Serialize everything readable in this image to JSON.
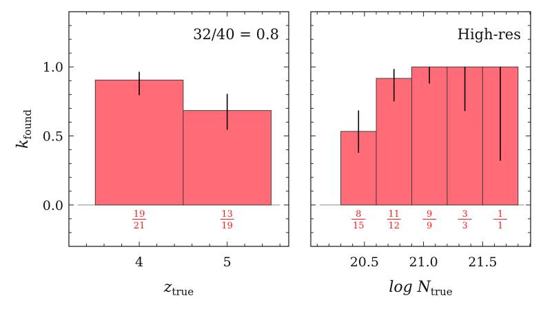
{
  "chart_data": [
    {
      "type": "bar",
      "panel": "left",
      "annotation": "32/40 = 0.8",
      "xlabel": {
        "main": "z",
        "sub": "true"
      },
      "ylabel": {
        "main": "k",
        "sub": "found"
      },
      "xlim": [
        3.2,
        5.7
      ],
      "ylim": [
        -0.3,
        1.4
      ],
      "xticks": [
        4,
        5
      ],
      "xtick_labels": [
        "4",
        "5"
      ],
      "xminor_step": 0.2,
      "yticks": [
        0.0,
        0.5,
        1.0
      ],
      "ytick_labels": [
        "0.0",
        "0.5",
        "1.0"
      ],
      "yminor_step": 0.1,
      "baseline": [
        3.3,
        5.6
      ],
      "bin_edges": [
        3.5,
        4.5,
        5.5
      ],
      "values": [
        0.905,
        0.684
      ],
      "errors_low": [
        0.795,
        0.545
      ],
      "errors_high": [
        0.965,
        0.805
      ],
      "fractions": [
        {
          "num": "19",
          "den": "21"
        },
        {
          "num": "13",
          "den": "19"
        }
      ],
      "bar_color": "#ff6b77",
      "edge_color": "#333333",
      "fraction_color": "#ff1a1a"
    },
    {
      "type": "bar",
      "panel": "right",
      "annotation": "High-res",
      "xlabel": {
        "main": "log N",
        "sub": "true"
      },
      "xlim": [
        20.046,
        21.906
      ],
      "ylim": [
        -0.3,
        1.4
      ],
      "xticks": [
        20.5,
        21.0,
        21.5
      ],
      "xtick_labels": [
        "20.5",
        "21.0",
        "21.5"
      ],
      "xminor_step": 0.1,
      "yticks": [
        0.0,
        0.5,
        1.0
      ],
      "yminor_step": 0.1,
      "baseline": [
        20.12,
        21.85
      ],
      "bin_edges": [
        20.3,
        20.6,
        20.9,
        21.2,
        21.5,
        21.8
      ],
      "values": [
        0.533,
        0.917,
        1.0,
        1.0,
        1.0
      ],
      "errors_low": [
        0.378,
        0.75,
        0.88,
        0.68,
        0.32
      ],
      "errors_high": [
        0.685,
        0.985,
        1.0,
        1.0,
        1.0
      ],
      "fractions": [
        {
          "num": "8",
          "den": "15"
        },
        {
          "num": "11",
          "den": "12"
        },
        {
          "num": "9",
          "den": "9"
        },
        {
          "num": "3",
          "den": "3"
        },
        {
          "num": "1",
          "den": "1"
        }
      ],
      "bar_color": "#ff6b77",
      "edge_color": "#333333",
      "fraction_color": "#ff1a1a"
    }
  ]
}
